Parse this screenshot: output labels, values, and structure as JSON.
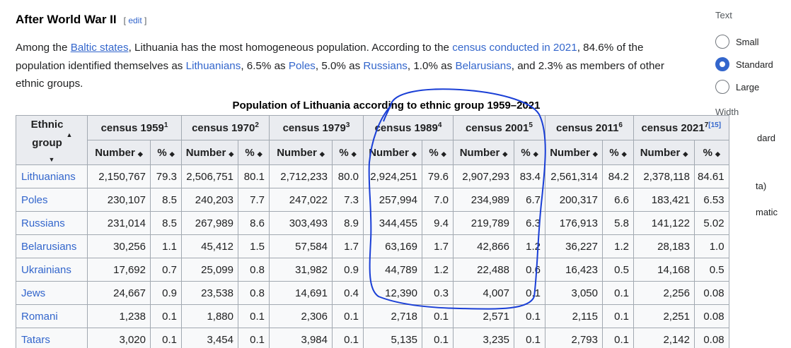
{
  "heading": {
    "title": "After World War II",
    "edit_open": "[",
    "edit_label": "edit",
    "edit_close": "]"
  },
  "paragraph": {
    "p1": "Among the ",
    "link_baltic": "Baltic states",
    "p2": ", Lithuania has the most homogeneous population. According to the ",
    "link_census": "census conducted in 2021",
    "p3": ", 84.6% of the population identified themselves as ",
    "link_lithuanians": "Lithuanians",
    "p4": ", 6.5% as ",
    "link_poles": "Poles",
    "p5": ", 5.0% as ",
    "link_russians": "Russians",
    "p6": ", 1.0% as ",
    "link_belarusians": "Belarusians",
    "p7": ", and 2.3% as members of other ethnic groups."
  },
  "table": {
    "caption": "Population of Lithuania according to ethnic group 1959–2021",
    "ethnic_line1": "Ethnic",
    "ethnic_line2": "group",
    "censuses": [
      {
        "label": "census 1959",
        "ref": "1"
      },
      {
        "label": "census 1970",
        "ref": "2"
      },
      {
        "label": "census 1979",
        "ref": "3"
      },
      {
        "label": "census 1989",
        "ref": "4"
      },
      {
        "label": "census 2001",
        "ref": "5"
      },
      {
        "label": "census 2011",
        "ref": "6"
      },
      {
        "label": "census 2021",
        "ref": "7",
        "extra_ref": "[15]"
      }
    ],
    "number_label": "Number",
    "percent_label": "%",
    "rows": [
      {
        "group": "Lithuanians",
        "values": [
          "2,150,767",
          "79.3",
          "2,506,751",
          "80.1",
          "2,712,233",
          "80.0",
          "2,924,251",
          "79.6",
          "2,907,293",
          "83.4",
          "2,561,314",
          "84.2",
          "2,378,118",
          "84.61"
        ]
      },
      {
        "group": "Poles",
        "values": [
          "230,107",
          "8.5",
          "240,203",
          "7.7",
          "247,022",
          "7.3",
          "257,994",
          "7.0",
          "234,989",
          "6.7",
          "200,317",
          "6.6",
          "183,421",
          "6.53"
        ]
      },
      {
        "group": "Russians",
        "values": [
          "231,014",
          "8.5",
          "267,989",
          "8.6",
          "303,493",
          "8.9",
          "344,455",
          "9.4",
          "219,789",
          "6.3",
          "176,913",
          "5.8",
          "141,122",
          "5.02"
        ]
      },
      {
        "group": "Belarusians",
        "values": [
          "30,256",
          "1.1",
          "45,412",
          "1.5",
          "57,584",
          "1.7",
          "63,169",
          "1.7",
          "42,866",
          "1.2",
          "36,227",
          "1.2",
          "28,183",
          "1.0"
        ]
      },
      {
        "group": "Ukrainians",
        "values": [
          "17,692",
          "0.7",
          "25,099",
          "0.8",
          "31,982",
          "0.9",
          "44,789",
          "1.2",
          "22,488",
          "0.6",
          "16,423",
          "0.5",
          "14,168",
          "0.5"
        ]
      },
      {
        "group": "Jews",
        "values": [
          "24,667",
          "0.9",
          "23,538",
          "0.8",
          "14,691",
          "0.4",
          "12,390",
          "0.3",
          "4,007",
          "0.1",
          "3,050",
          "0.1",
          "2,256",
          "0.08"
        ]
      },
      {
        "group": "Romani",
        "values": [
          "1,238",
          "0.1",
          "1,880",
          "0.1",
          "2,306",
          "0.1",
          "2,718",
          "0.1",
          "2,571",
          "0.1",
          "2,115",
          "0.1",
          "2,251",
          "0.08"
        ]
      },
      {
        "group": "Tatars",
        "values": [
          "3,020",
          "0.1",
          "3,454",
          "0.1",
          "3,984",
          "0.1",
          "5,135",
          "0.1",
          "3,235",
          "0.1",
          "2,793",
          "0.1",
          "2,142",
          "0.08"
        ]
      }
    ]
  },
  "sidebar": {
    "text_label": "Text",
    "options": [
      {
        "label": "Small",
        "selected": false
      },
      {
        "label": "Standard",
        "selected": true
      },
      {
        "label": "Large",
        "selected": false
      }
    ],
    "width_label": "Width",
    "fragments": [
      "dard",
      "ta)",
      "matic"
    ]
  },
  "colors": {
    "link": "#3366cc",
    "header_bg": "#eaecf0",
    "cell_bg": "#f8f9fa",
    "border": "#a2a9b1",
    "annotation": "#1a3fd6"
  }
}
